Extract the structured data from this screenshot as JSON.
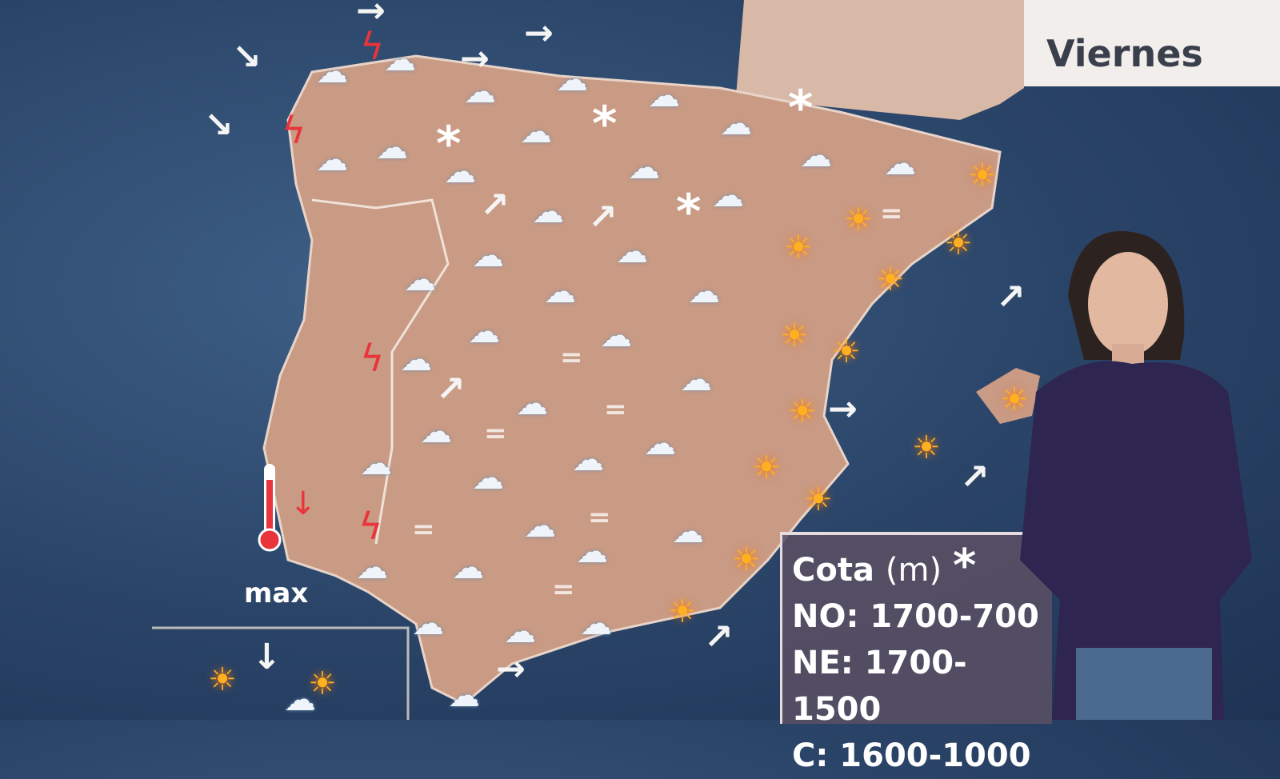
{
  "header": {
    "day": "Viernes"
  },
  "legend": {
    "temperature_label": "max",
    "thermometer_trend": "down"
  },
  "snow_level": {
    "title": "Cota",
    "unit": "(m)",
    "icon": "snowflake-icon",
    "rows": [
      "NO: 1700-700",
      "NE: 1700-1500",
      "C: 1600-1000"
    ]
  },
  "icons": {
    "cloud": "☁",
    "sun": "☀",
    "snow": "*",
    "bolt": "ϟ",
    "arrow_e": "→",
    "arrow_se": "↘",
    "arrow_ne": "↗",
    "arrow_s": "↓",
    "eq": "="
  },
  "colors": {
    "sea": "#2a4468",
    "land": "#c99a84",
    "sun": "#ffb020",
    "storm": "#e8343a",
    "panel": "#5a5064"
  }
}
